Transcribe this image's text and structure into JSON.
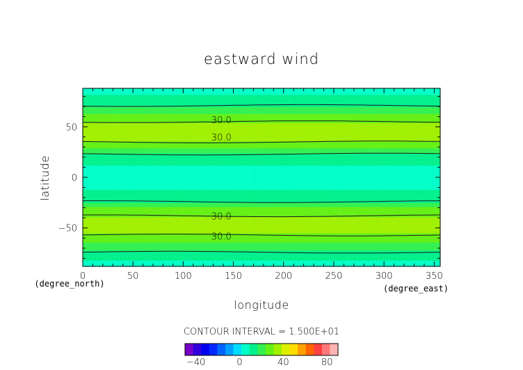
{
  "chart_data": {
    "type": "heatmap",
    "title": "eastward wind",
    "xlabel": "longitude",
    "ylabel": "latitude",
    "x_unit": "(degree_east)",
    "y_unit": "(degree_north)",
    "xlim": [
      0,
      356
    ],
    "ylim": [
      -88,
      88
    ],
    "x_ticks": [
      0,
      50,
      100,
      150,
      200,
      250,
      300,
      350
    ],
    "y_ticks": [
      -50,
      0,
      50
    ],
    "zonal_profile": {
      "latitude": [
        -88,
        -80,
        -74,
        -62,
        -57,
        -45,
        -38,
        -30,
        -24,
        -10,
        0,
        10,
        23,
        30,
        35,
        45,
        55,
        62,
        71,
        80,
        88
      ],
      "wind": [
        6,
        10,
        15,
        25,
        30,
        38,
        30,
        25,
        15,
        8,
        6,
        8,
        15,
        25,
        30,
        38,
        30,
        25,
        15,
        10,
        6
      ]
    },
    "contours": [
      {
        "level": 15,
        "latitudes": [
          -74,
          -24,
          23,
          71
        ]
      },
      {
        "level": 30,
        "latitudes": [
          -57,
          -38,
          35,
          55
        ]
      }
    ],
    "contour_labels": [
      {
        "text": "30.0",
        "lon": 128,
        "lat": 57
      },
      {
        "text": "30.0",
        "lon": 128,
        "lat": 40
      },
      {
        "text": "30.0",
        "lon": 128,
        "lat": -38
      },
      {
        "text": "30.0",
        "lon": 128,
        "lat": -58
      }
    ],
    "contour_interval_text": "CONTOUR INTERVAL = 1.500E+01",
    "colorbar": {
      "colors": [
        "#7800c8",
        "#3200dc",
        "#0000f0",
        "#0028ff",
        "#0064ff",
        "#00a0ff",
        "#00dcff",
        "#00ffc8",
        "#00f08c",
        "#32f050",
        "#64f014",
        "#a0f000",
        "#dcf000",
        "#ffdc00",
        "#ffa000",
        "#ff6400",
        "#ff4040",
        "#ff7878",
        "#ffb4b4"
      ],
      "min": -50,
      "max": 90,
      "ticks": [
        -40,
        0,
        40,
        80
      ]
    }
  }
}
